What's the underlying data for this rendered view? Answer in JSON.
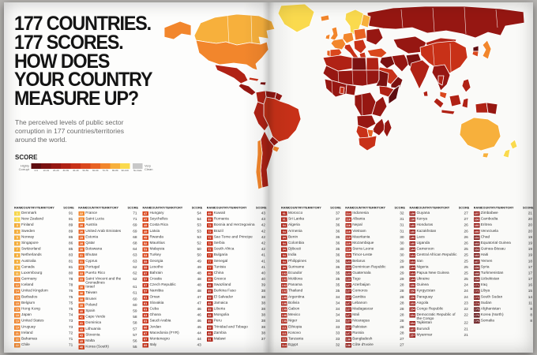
{
  "header": {
    "headline_lines": [
      "177 COUNTRIES.",
      "177 SCORES.",
      "HOW DOES",
      "YOUR COUNTRY",
      "MEASURE UP?"
    ],
    "subtitle": "The perceived levels of public sector corruption in 177 countries/territories around the world."
  },
  "legend": {
    "title": "SCORE",
    "left_label": "Highly Corrupt",
    "right_label": "Very Clean",
    "buckets": [
      {
        "label": "0-9",
        "color": "#5f0d10"
      },
      {
        "label": "10-19",
        "color": "#7a1110"
      },
      {
        "label": "20-29",
        "color": "#961712"
      },
      {
        "label": "30-39",
        "color": "#b02215"
      },
      {
        "label": "40-49",
        "color": "#c83118"
      },
      {
        "label": "50-59",
        "color": "#da471d"
      },
      {
        "label": "60-69",
        "color": "#e86223"
      },
      {
        "label": "70-79",
        "color": "#f2862c"
      },
      {
        "label": "80-89",
        "color": "#f7b03c"
      },
      {
        "label": "90-100",
        "color": "#fada4e"
      }
    ],
    "no_data": {
      "label": "No data",
      "color": "#c8c8c8"
    }
  },
  "chart_data": {
    "type": "table",
    "title": "177 countries. 177 scores.",
    "header": {
      "rank": "RANK",
      "country": "COUNTRY/TERRITORY",
      "score": "SCORE"
    },
    "columns": [
      [
        [
          1,
          "Denmark",
          91
        ],
        [
          1,
          "New Zealand",
          91
        ],
        [
          3,
          "Finland",
          89
        ],
        [
          3,
          "Sweden",
          89
        ],
        [
          5,
          "Norway",
          86
        ],
        [
          5,
          "Singapore",
          86
        ],
        [
          7,
          "Switzerland",
          85
        ],
        [
          8,
          "Netherlands",
          83
        ],
        [
          9,
          "Australia",
          81
        ],
        [
          9,
          "Canada",
          81
        ],
        [
          11,
          "Luxembourg",
          80
        ],
        [
          12,
          "Germany",
          78
        ],
        [
          12,
          "Iceland",
          78
        ],
        [
          14,
          "United Kingdom",
          76
        ],
        [
          15,
          "Barbados",
          75
        ],
        [
          15,
          "Belgium",
          75
        ],
        [
          15,
          "Hong Kong",
          75
        ],
        [
          18,
          "Japan",
          74
        ],
        [
          19,
          "United States",
          73
        ],
        [
          19,
          "Uruguay",
          73
        ],
        [
          21,
          "Ireland",
          72
        ],
        [
          22,
          "Bahamas",
          71
        ],
        [
          22,
          "Chile",
          71
        ]
      ],
      [
        [
          22,
          "France",
          71
        ],
        [
          22,
          "Saint Lucia",
          71
        ],
        [
          26,
          "Austria",
          69
        ],
        [
          26,
          "United Arab Emirates",
          69
        ],
        [
          28,
          "Estonia",
          68
        ],
        [
          28,
          "Qatar",
          68
        ],
        [
          30,
          "Botswana",
          64
        ],
        [
          31,
          "Bhutan",
          63
        ],
        [
          31,
          "Cyprus",
          63
        ],
        [
          33,
          "Portugal",
          62
        ],
        [
          33,
          "Puerto Rico",
          62
        ],
        [
          33,
          "Saint Vincent and the Grenadines",
          62
        ],
        [
          36,
          "Israel",
          61
        ],
        [
          36,
          "Taiwan",
          61
        ],
        [
          38,
          "Brunei",
          60
        ],
        [
          38,
          "Poland",
          60
        ],
        [
          40,
          "Spain",
          59
        ],
        [
          41,
          "Cape Verde",
          58
        ],
        [
          41,
          "Dominica",
          58
        ],
        [
          43,
          "Lithuania",
          57
        ],
        [
          43,
          "Slovenia",
          57
        ],
        [
          45,
          "Malta",
          56
        ],
        [
          46,
          "Korea (South)",
          55
        ]
      ],
      [
        [
          47,
          "Hungary",
          54
        ],
        [
          47,
          "Seychelles",
          54
        ],
        [
          49,
          "Costa Rica",
          53
        ],
        [
          49,
          "Latvia",
          53
        ],
        [
          49,
          "Rwanda",
          53
        ],
        [
          52,
          "Mauritius",
          52
        ],
        [
          53,
          "Malaysia",
          50
        ],
        [
          53,
          "Turkey",
          50
        ],
        [
          55,
          "Georgia",
          49
        ],
        [
          55,
          "Lesotho",
          49
        ],
        [
          57,
          "Bahrain",
          48
        ],
        [
          57,
          "Croatia",
          48
        ],
        [
          57,
          "Czech Republic",
          48
        ],
        [
          57,
          "Namibia",
          48
        ],
        [
          61,
          "Oman",
          47
        ],
        [
          61,
          "Slovakia",
          47
        ],
        [
          63,
          "Cuba",
          46
        ],
        [
          63,
          "Ghana",
          46
        ],
        [
          63,
          "Saudi Arabia",
          46
        ],
        [
          66,
          "Jordan",
          45
        ],
        [
          67,
          "Macedonia (FYR)",
          44
        ],
        [
          67,
          "Montenegro",
          44
        ],
        [
          69,
          "Italy",
          43
        ]
      ],
      [
        [
          69,
          "Kuwait",
          43
        ],
        [
          69,
          "Romania",
          43
        ],
        [
          72,
          "Bosnia and Herzegovina",
          42
        ],
        [
          72,
          "Brazil",
          42
        ],
        [
          72,
          "Sao Tome and Principe",
          42
        ],
        [
          72,
          "Serbia",
          42
        ],
        [
          72,
          "South Africa",
          42
        ],
        [
          77,
          "Bulgaria",
          41
        ],
        [
          77,
          "Senegal",
          41
        ],
        [
          77,
          "Tunisia",
          41
        ],
        [
          80,
          "China",
          40
        ],
        [
          80,
          "Greece",
          40
        ],
        [
          82,
          "Swaziland",
          39
        ],
        [
          83,
          "Burkina Faso",
          38
        ],
        [
          83,
          "El Salvador",
          38
        ],
        [
          83,
          "Jamaica",
          38
        ],
        [
          83,
          "Liberia",
          38
        ],
        [
          83,
          "Mongolia",
          38
        ],
        [
          83,
          "Peru",
          38
        ],
        [
          83,
          "Trinidad and Tobago",
          38
        ],
        [
          83,
          "Zambia",
          38
        ],
        [
          91,
          "Malawi",
          37
        ]
      ],
      [
        [
          91,
          "Morocco",
          37
        ],
        [
          91,
          "Sri Lanka",
          37
        ],
        [
          94,
          "Algeria",
          36
        ],
        [
          94,
          "Armenia",
          36
        ],
        [
          94,
          "Benin",
          36
        ],
        [
          94,
          "Colombia",
          36
        ],
        [
          94,
          "Djibouti",
          36
        ],
        [
          94,
          "India",
          36
        ],
        [
          94,
          "Philippines",
          36
        ],
        [
          94,
          "Suriname",
          36
        ],
        [
          102,
          "Ecuador",
          35
        ],
        [
          102,
          "Moldova",
          35
        ],
        [
          102,
          "Panama",
          35
        ],
        [
          102,
          "Thailand",
          35
        ],
        [
          106,
          "Argentina",
          34
        ],
        [
          106,
          "Bolivia",
          34
        ],
        [
          106,
          "Gabon",
          34
        ],
        [
          106,
          "Mexico",
          34
        ],
        [
          106,
          "Niger",
          34
        ],
        [
          111,
          "Ethiopia",
          33
        ],
        [
          111,
          "Kosovo",
          33
        ],
        [
          111,
          "Tanzania",
          33
        ],
        [
          114,
          "Egypt",
          32
        ]
      ],
      [
        [
          114,
          "Indonesia",
          32
        ],
        [
          116,
          "Albania",
          31
        ],
        [
          116,
          "Nepal",
          31
        ],
        [
          116,
          "Vietnam",
          31
        ],
        [
          119,
          "Mauritania",
          30
        ],
        [
          119,
          "Mozambique",
          30
        ],
        [
          119,
          "Sierra Leone",
          30
        ],
        [
          119,
          "Timor-Leste",
          30
        ],
        [
          123,
          "Belarus",
          29
        ],
        [
          123,
          "Dominican Republic",
          29
        ],
        [
          123,
          "Guatemala",
          29
        ],
        [
          123,
          "Togo",
          29
        ],
        [
          127,
          "Azerbaijan",
          28
        ],
        [
          127,
          "Comoros",
          28
        ],
        [
          127,
          "Gambia",
          28
        ],
        [
          127,
          "Lebanon",
          28
        ],
        [
          127,
          "Madagascar",
          28
        ],
        [
          127,
          "Mali",
          28
        ],
        [
          127,
          "Nicaragua",
          28
        ],
        [
          127,
          "Pakistan",
          28
        ],
        [
          127,
          "Russia",
          28
        ],
        [
          136,
          "Bangladesh",
          27
        ],
        [
          136,
          "Côte d'Ivoire",
          27
        ]
      ],
      [
        [
          136,
          "Guyana",
          27
        ],
        [
          136,
          "Kenya",
          27
        ],
        [
          140,
          "Honduras",
          26
        ],
        [
          140,
          "Kazakhstan",
          26
        ],
        [
          140,
          "Laos",
          26
        ],
        [
          140,
          "Uganda",
          26
        ],
        [
          144,
          "Cameroon",
          25
        ],
        [
          144,
          "Central African Republic",
          25
        ],
        [
          144,
          "Iran",
          25
        ],
        [
          144,
          "Nigeria",
          25
        ],
        [
          144,
          "Papua New Guinea",
          25
        ],
        [
          144,
          "Ukraine",
          25
        ],
        [
          150,
          "Guinea",
          24
        ],
        [
          150,
          "Kyrgyzstan",
          24
        ],
        [
          150,
          "Paraguay",
          24
        ],
        [
          153,
          "Angola",
          23
        ],
        [
          154,
          "Congo Republic",
          22
        ],
        [
          154,
          "Democratic Republic of the Congo",
          22
        ],
        [
          154,
          "Tajikistan",
          22
        ],
        [
          157,
          "Burundi",
          21
        ],
        [
          157,
          "Myanmar",
          21
        ]
      ],
      [
        [
          157,
          "Zimbabwe",
          21
        ],
        [
          160,
          "Cambodia",
          20
        ],
        [
          160,
          "Eritrea",
          20
        ],
        [
          160,
          "Venezuela",
          20
        ],
        [
          163,
          "Chad",
          19
        ],
        [
          163,
          "Equatorial Guinea",
          19
        ],
        [
          163,
          "Guinea-Bissau",
          19
        ],
        [
          163,
          "Haiti",
          19
        ],
        [
          167,
          "Yemen",
          18
        ],
        [
          168,
          "Syria",
          17
        ],
        [
          168,
          "Turkmenistan",
          17
        ],
        [
          168,
          "Uzbekistan",
          17
        ],
        [
          171,
          "Iraq",
          16
        ],
        [
          172,
          "Libya",
          15
        ],
        [
          173,
          "South Sudan",
          14
        ],
        [
          174,
          "Sudan",
          11
        ],
        [
          175,
          "Afghanistan",
          8
        ],
        [
          175,
          "Korea (North)",
          8
        ],
        [
          175,
          "Somalia",
          8
        ]
      ]
    ]
  },
  "map": {
    "type": "choropleth",
    "regions": {
      "greenland": "#fada4e",
      "iceland": "#f2862c",
      "alaska": "#f2862c",
      "canada": "#f7b03c",
      "usa": "#f2862c",
      "mexico": "#b02215",
      "central-america": "#961712",
      "cuba": "#c83118",
      "hispaniola": "#7a1110",
      "venezuela": "#961712",
      "guyana": "#961712",
      "colombia": "#b02215",
      "brazil": "#c83118",
      "peru-bolivia": "#b02215",
      "paraguay": "#961712",
      "argentina": "#b02215",
      "chile": "#f2862c",
      "uruguay": "#f2862c",
      "scandinavia": "#fada4e",
      "finland": "#f7b03c",
      "uk": "#f2862c",
      "ireland": "#f2862c",
      "france": "#f2862c",
      "iberia": "#da471d",
      "portugal": "#e86223",
      "germany-central": "#f2862c",
      "poland-baltics": "#e86223",
      "italy": "#c83118",
      "balkans": "#c83118",
      "greece": "#c83118",
      "ukraine-belarus": "#961712",
      "russia": "#961712",
      "turkey": "#da471d",
      "syria-iraq": "#7a1110",
      "iran": "#961712",
      "saudi": "#c83118",
      "yemen-oman": "#7a1110",
      "central-asia": "#961712",
      "afghanistan-pakistan": "#7a1110",
      "north-africa-west": "#b02215",
      "libya": "#7a1110",
      "egypt": "#b02215",
      "sahel": "#961712",
      "sudan": "#7a1110",
      "west-africa": "#961712",
      "nigeria": "#961712",
      "ghana": "#c83118",
      "ethiopia": "#b02215",
      "somalia": "#5f0d10",
      "congo-central": "#961712",
      "east-africa": "#961712",
      "angola-zambia": "#961712",
      "mozambique-zimbabwe": "#961712",
      "namibia": "#c83118",
      "botswana": "#e86223",
      "south-africa": "#c83118",
      "madagascar": "#961712",
      "china": "#c83118",
      "mongolia": "#b02215",
      "india": "#b02215",
      "sri-lanka": "#b02215",
      "se-asia": "#961712",
      "thailand": "#b02215",
      "malaysia": "#da471d",
      "sumatra": "#b02215",
      "java": "#b02215",
      "borneo": "#b02215",
      "sulawesi": "#b02215",
      "indo-papua": "#b02215",
      "png": "#961712",
      "philippines": "#b02215",
      "japan": "#f2862c",
      "korea-north": "#5f0d10",
      "korea-south": "#da471d",
      "australia": "#f7b03c",
      "tasmania": "#f7b03c",
      "new-zealand": "#fada4e"
    }
  }
}
